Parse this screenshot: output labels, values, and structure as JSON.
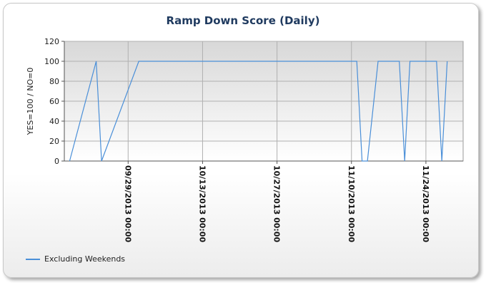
{
  "chart_data": {
    "type": "line",
    "title": "Ramp Down Score (Daily)",
    "ylabel": "YES=100 / NO=0",
    "ylim": [
      0,
      120
    ],
    "yticks": [
      0,
      20,
      40,
      60,
      80,
      100,
      120
    ],
    "xlim": [
      "2013-09-17",
      "2013-12-01"
    ],
    "xticks": [
      "09/29/2013 00:00",
      "10/13/2013 00:00",
      "10/27/2013 00:00",
      "11/10/2013 00:00",
      "11/24/2013 00:00"
    ],
    "xtick_dates": [
      "2013-09-29",
      "2013-10-13",
      "2013-10-27",
      "2013-11-10",
      "2013-11-24"
    ],
    "grid": true,
    "legend_position": "bottom-left",
    "series": [
      {
        "name": "Excluding Weekends",
        "color": "#4a8fd8",
        "points": [
          [
            "2013-09-18",
            0
          ],
          [
            "2013-09-23",
            100
          ],
          [
            "2013-09-24",
            0
          ],
          [
            "2013-10-01",
            100
          ],
          [
            "2013-11-11",
            100
          ],
          [
            "2013-11-12",
            0
          ],
          [
            "2013-11-13",
            0
          ],
          [
            "2013-11-15",
            100
          ],
          [
            "2013-11-19",
            100
          ],
          [
            "2013-11-20",
            0
          ],
          [
            "2013-11-21",
            100
          ],
          [
            "2013-11-26",
            100
          ],
          [
            "2013-11-27",
            0
          ],
          [
            "2013-11-28",
            100
          ]
        ]
      }
    ]
  }
}
